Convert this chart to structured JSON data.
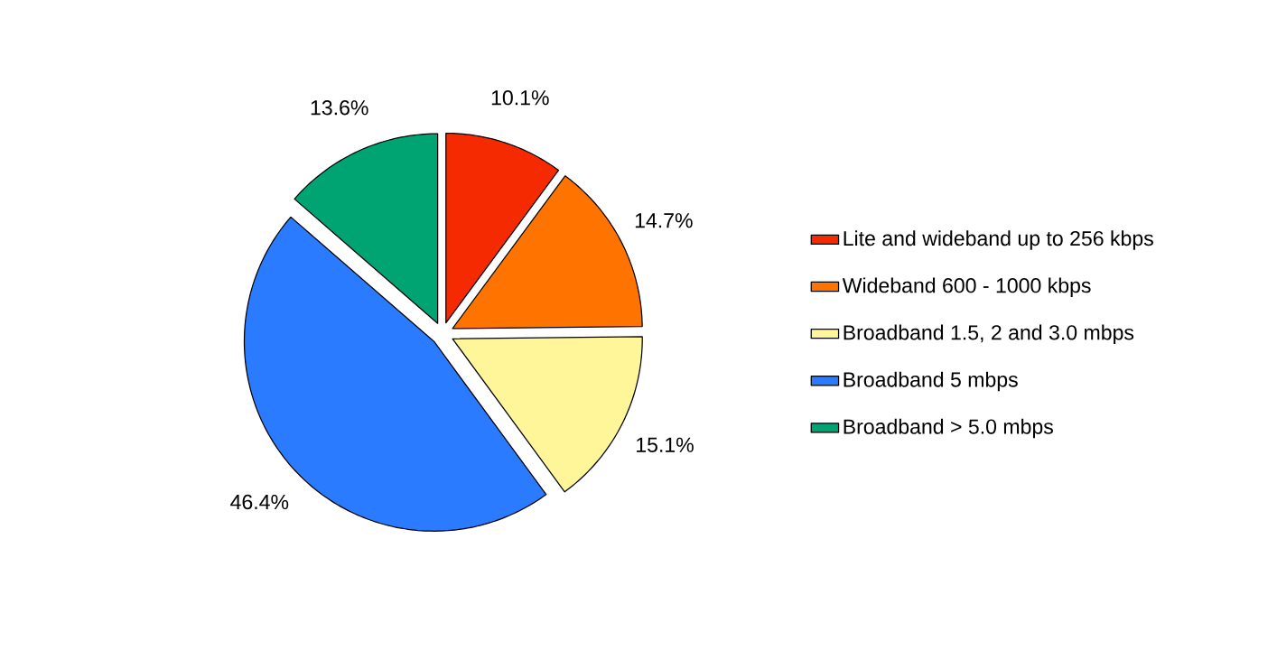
{
  "chart_data": {
    "type": "pie",
    "categories": [
      "Lite and wideband up to 256 kbps",
      "Wideband 600 - 1000 kbps",
      "Broadband 1.5, 2 and 3.0 mbps",
      "Broadband 5 mbps",
      "Broadband > 5.0 mbps"
    ],
    "values": [
      10.1,
      14.7,
      15.1,
      46.4,
      13.6
    ],
    "value_labels": [
      "10.1%",
      "14.7%",
      "15.1%",
      "46.4%",
      "13.6%"
    ],
    "colors": [
      "#f52a00",
      "#ff7300",
      "#fff599",
      "#2a7bff",
      "#00a372"
    ],
    "legend": "right"
  }
}
